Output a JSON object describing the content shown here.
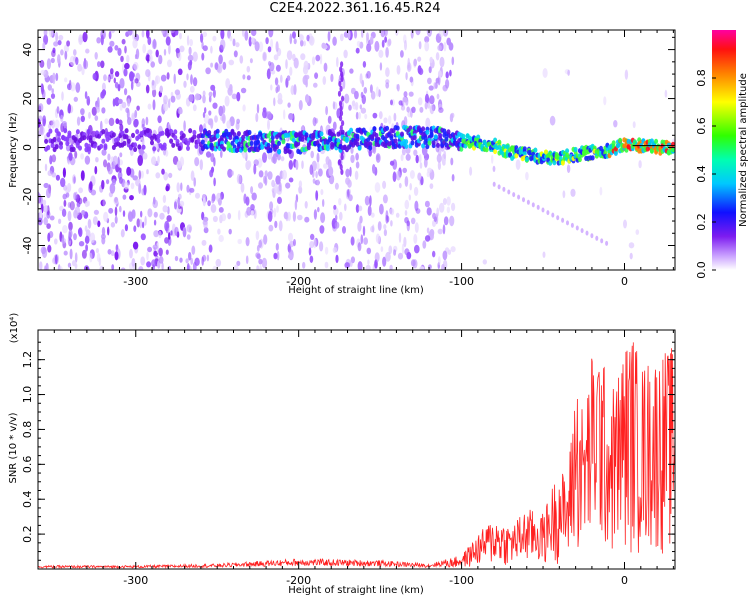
{
  "title": "C2E4.2022.361.16.45.R24",
  "chart_data": [
    {
      "type": "heatmap",
      "xlabel": "Height of straight line (km)",
      "ylabel": "Frequency (Hz)",
      "xlim": [
        -360,
        31
      ],
      "ylim": [
        -50,
        48
      ],
      "xticks": [
        "-300",
        "-200",
        "-100",
        "0"
      ],
      "yticks": [
        "-40",
        "-20",
        "0",
        "20",
        "40"
      ],
      "colorbar": {
        "label": "Normalized spectral amplitude",
        "range": [
          0.0,
          1.0
        ],
        "ticks": [
          "0.0",
          "0.2",
          "0.4",
          "0.6",
          "0.8"
        ]
      },
      "ridge": {
        "x": [
          -260,
          -230,
          -200,
          -170,
          -150,
          -130,
          -110,
          -100,
          -80,
          -70,
          -60,
          -50,
          -40,
          -30,
          -20,
          -10,
          0,
          10,
          20,
          31
        ],
        "y": [
          3,
          2.5,
          2,
          3,
          4,
          4.5,
          4,
          3,
          1,
          -2,
          -3,
          -4,
          -4.5,
          -3,
          -2,
          -1,
          1,
          1,
          0,
          0
        ]
      }
    },
    {
      "type": "line",
      "xlabel": "Height of straight line (km)",
      "ylabel": "SNR (10 * v/v)",
      "yexponent": "(x10⁴)",
      "xlim": [
        -360,
        31
      ],
      "ylim": [
        0,
        1.37
      ],
      "xticks": [
        "-300",
        "-200",
        "-100",
        "0"
      ],
      "yticks": [
        "0.2",
        "0.4",
        "0.6",
        "0.8",
        "1.0",
        "1.2"
      ],
      "color": "#ff2020",
      "envelope": {
        "x": [
          -360,
          -300,
          -250,
          -200,
          -150,
          -120,
          -100,
          -90,
          -80,
          -70,
          -60,
          -50,
          -40,
          -35,
          -30,
          -25,
          -20,
          -15,
          -10,
          -5,
          0,
          5,
          10,
          20,
          31
        ],
        "y": [
          0.02,
          0.02,
          0.03,
          0.06,
          0.05,
          0.03,
          0.08,
          0.2,
          0.3,
          0.25,
          0.35,
          0.32,
          0.6,
          0.5,
          1.15,
          0.9,
          1.25,
          1.35,
          1.0,
          1.1,
          1.3,
          1.37,
          1.18,
          1.25,
          1.28
        ]
      }
    }
  ]
}
